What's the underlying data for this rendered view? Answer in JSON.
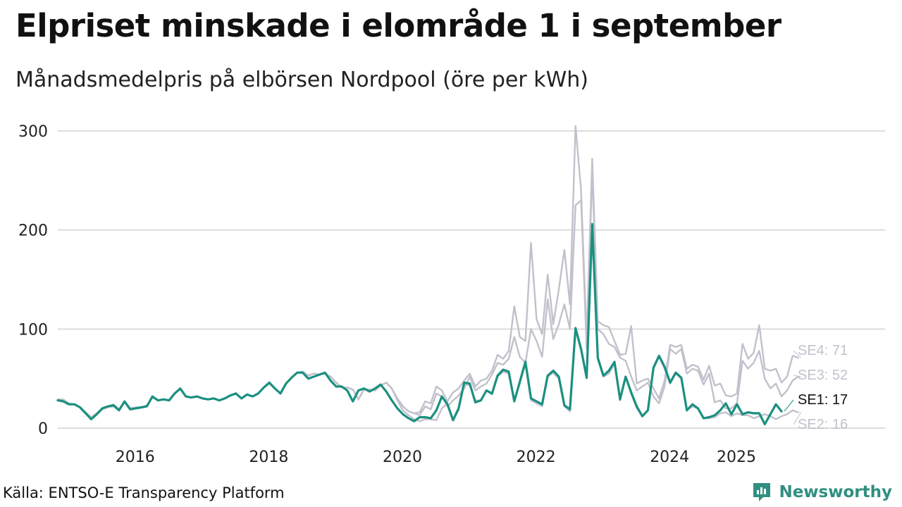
{
  "title": "Elpriset minskade i elområde 1 i september",
  "subtitle": "Månadsmedelpris på elbörsen Nordpool (öre per kWh)",
  "source": "Källa: ENTSO-E Transparency Platform",
  "brand": {
    "name": "Newsworthy",
    "icon": "newsworthy-logo-icon",
    "color": "#2f8f80"
  },
  "chart_data": {
    "type": "line",
    "title": "Elpriset minskade i elområde 1 i september",
    "subtitle": "Månadsmedelpris på elbörsen Nordpool (öre per kWh)",
    "ylabel": "öre per kWh",
    "ylim": [
      0,
      300
    ],
    "yticks": [
      0,
      100,
      200,
      300
    ],
    "xticks": [
      {
        "label": "2016",
        "x": 2016
      },
      {
        "label": "2018",
        "x": 2018
      },
      {
        "label": "2020",
        "x": 2020
      },
      {
        "label": "2022",
        "x": 2022
      },
      {
        "label": "2024",
        "x": 2024
      },
      {
        "label": "2025",
        "x": 2025
      }
    ],
    "x_start": 2015.0,
    "x_step_months": 1,
    "grid": "horizontal",
    "colors": {
      "highlight": "#1a9080",
      "muted": "#c2c0cc",
      "grid": "#dcdcdc"
    },
    "series": [
      {
        "name": "SE4",
        "label": "SE4: 71",
        "highlight": false,
        "values": [
          29,
          29,
          25,
          24,
          21,
          16,
          11,
          15,
          20,
          22,
          24,
          19,
          27,
          20,
          21,
          21,
          23,
          31,
          28,
          29,
          28,
          35,
          40,
          32,
          31,
          32,
          30,
          29,
          30,
          28,
          30,
          33,
          35,
          30,
          34,
          32,
          35,
          41,
          45,
          40,
          35,
          45,
          51,
          56,
          57,
          53,
          55,
          54,
          55,
          52,
          46,
          41,
          41,
          39,
          29,
          39,
          39,
          38,
          43,
          46,
          40,
          30,
          22,
          17,
          15,
          16,
          27,
          25,
          42,
          38,
          27,
          36,
          40,
          48,
          55,
          42,
          48,
          50,
          58,
          74,
          70,
          78,
          123,
          92,
          88,
          187,
          110,
          95,
          155,
          105,
          140,
          180,
          125,
          305,
          240,
          90,
          272,
          108,
          104,
          102,
          88,
          74,
          75,
          103,
          45,
          48,
          50,
          40,
          30,
          48,
          84,
          82,
          84,
          60,
          64,
          62,
          49,
          63,
          43,
          45,
          33,
          32,
          35,
          85,
          70,
          76,
          104,
          60,
          58,
          60,
          46,
          52,
          73,
          71
        ]
      },
      {
        "name": "SE3",
        "label": "SE3: 52",
        "highlight": false,
        "values": [
          29,
          28,
          25,
          24,
          21,
          16,
          11,
          15,
          20,
          22,
          24,
          19,
          27,
          20,
          21,
          21,
          23,
          31,
          28,
          29,
          28,
          35,
          40,
          32,
          31,
          32,
          30,
          29,
          30,
          28,
          30,
          33,
          35,
          30,
          34,
          32,
          35,
          41,
          45,
          40,
          35,
          45,
          51,
          56,
          57,
          53,
          55,
          54,
          55,
          52,
          46,
          41,
          41,
          39,
          29,
          39,
          39,
          38,
          43,
          46,
          40,
          30,
          22,
          17,
          15,
          13,
          22,
          19,
          35,
          32,
          22,
          28,
          33,
          40,
          52,
          38,
          42,
          45,
          54,
          66,
          64,
          70,
          92,
          72,
          66,
          100,
          88,
          72,
          130,
          90,
          105,
          125,
          100,
          225,
          230,
          80,
          260,
          100,
          95,
          85,
          82,
          71,
          68,
          52,
          38,
          42,
          46,
          32,
          25,
          42,
          80,
          75,
          80,
          55,
          60,
          58,
          44,
          55,
          26,
          28,
          20,
          20,
          25,
          68,
          60,
          66,
          78,
          50,
          40,
          45,
          32,
          38,
          48,
          52
        ]
      },
      {
        "name": "SE2",
        "label": "SE2: 16",
        "highlight": false,
        "values": [
          28,
          28,
          24,
          24,
          21,
          15,
          9,
          14,
          19,
          21,
          22,
          18,
          26,
          19,
          20,
          21,
          22,
          31,
          28,
          29,
          28,
          35,
          40,
          32,
          31,
          32,
          30,
          29,
          30,
          28,
          30,
          33,
          35,
          30,
          34,
          32,
          35,
          41,
          45,
          40,
          35,
          45,
          51,
          56,
          57,
          53,
          55,
          54,
          55,
          52,
          46,
          41,
          41,
          39,
          29,
          39,
          39,
          38,
          43,
          46,
          40,
          28,
          18,
          13,
          9,
          7,
          9,
          9,
          8,
          20,
          25,
          8,
          18,
          45,
          43,
          28,
          28,
          38,
          34,
          52,
          57,
          55,
          27,
          45,
          65,
          28,
          25,
          22,
          52,
          56,
          50,
          22,
          17,
          100,
          78,
          50,
          206,
          70,
          52,
          55,
          65,
          28,
          52,
          35,
          20,
          12,
          18,
          60,
          72,
          60,
          45,
          55,
          50,
          18,
          22,
          20,
          10,
          10,
          11,
          15,
          16,
          12,
          15,
          13,
          13,
          10,
          12,
          14,
          12,
          9,
          12,
          14,
          18,
          16
        ]
      },
      {
        "name": "SE1",
        "label": "SE1: 17",
        "highlight": true,
        "values": [
          28,
          27,
          24,
          24,
          21,
          15,
          9,
          14,
          20,
          22,
          23,
          18,
          27,
          19,
          20,
          21,
          22,
          32,
          28,
          29,
          28,
          35,
          40,
          32,
          31,
          32,
          30,
          29,
          30,
          28,
          30,
          33,
          35,
          30,
          34,
          32,
          35,
          41,
          46,
          40,
          35,
          45,
          51,
          56,
          56,
          50,
          52,
          54,
          56,
          48,
          42,
          42,
          38,
          27,
          38,
          40,
          37,
          40,
          44,
          37,
          28,
          20,
          14,
          10,
          7,
          11,
          11,
          10,
          18,
          32,
          24,
          8,
          20,
          46,
          45,
          26,
          28,
          38,
          35,
          53,
          59,
          57,
          27,
          47,
          67,
          30,
          27,
          24,
          53,
          58,
          52,
          23,
          19,
          101,
          80,
          51,
          206,
          71,
          53,
          58,
          67,
          29,
          52,
          36,
          22,
          12,
          18,
          61,
          73,
          62,
          46,
          56,
          51,
          18,
          24,
          20,
          10,
          11,
          13,
          18,
          25,
          14,
          24,
          14,
          16,
          15,
          15,
          4,
          14,
          24,
          17
        ]
      }
    ]
  }
}
